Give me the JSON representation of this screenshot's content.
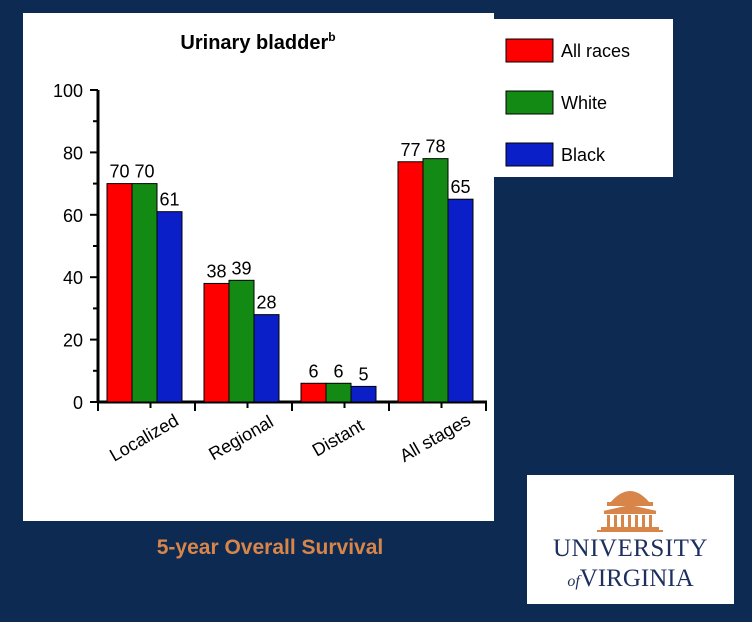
{
  "chart_data": {
    "type": "bar",
    "title": "Urinary bladder",
    "title_superscript": "b",
    "categories": [
      "Localized",
      "Regional",
      "Distant",
      "All stages"
    ],
    "series": [
      {
        "name": "All races",
        "color": "#ff0000",
        "values": [
          70,
          38,
          6,
          77
        ]
      },
      {
        "name": "White",
        "color": "#138a13",
        "values": [
          70,
          39,
          6,
          78
        ]
      },
      {
        "name": "Black",
        "color": "#0b1fc9",
        "values": [
          61,
          28,
          5,
          65
        ]
      }
    ],
    "ylim": [
      0,
      100
    ],
    "yticks": [
      "0",
      "20",
      "40",
      "60",
      "80",
      "100"
    ],
    "xlabel": "",
    "ylabel": "",
    "legend_position": "top-right",
    "grid": false
  },
  "caption": "5-year Overall Survival",
  "logo": {
    "line1": "UNIVERSITY",
    "of": "of",
    "line2": "VIRGINIA",
    "color": "#d8854a",
    "text_color": "#1d2f5e",
    "icon": "rotunda-icon"
  },
  "colors": {
    "background": "#0d2a52",
    "panel": "#ffffff"
  }
}
